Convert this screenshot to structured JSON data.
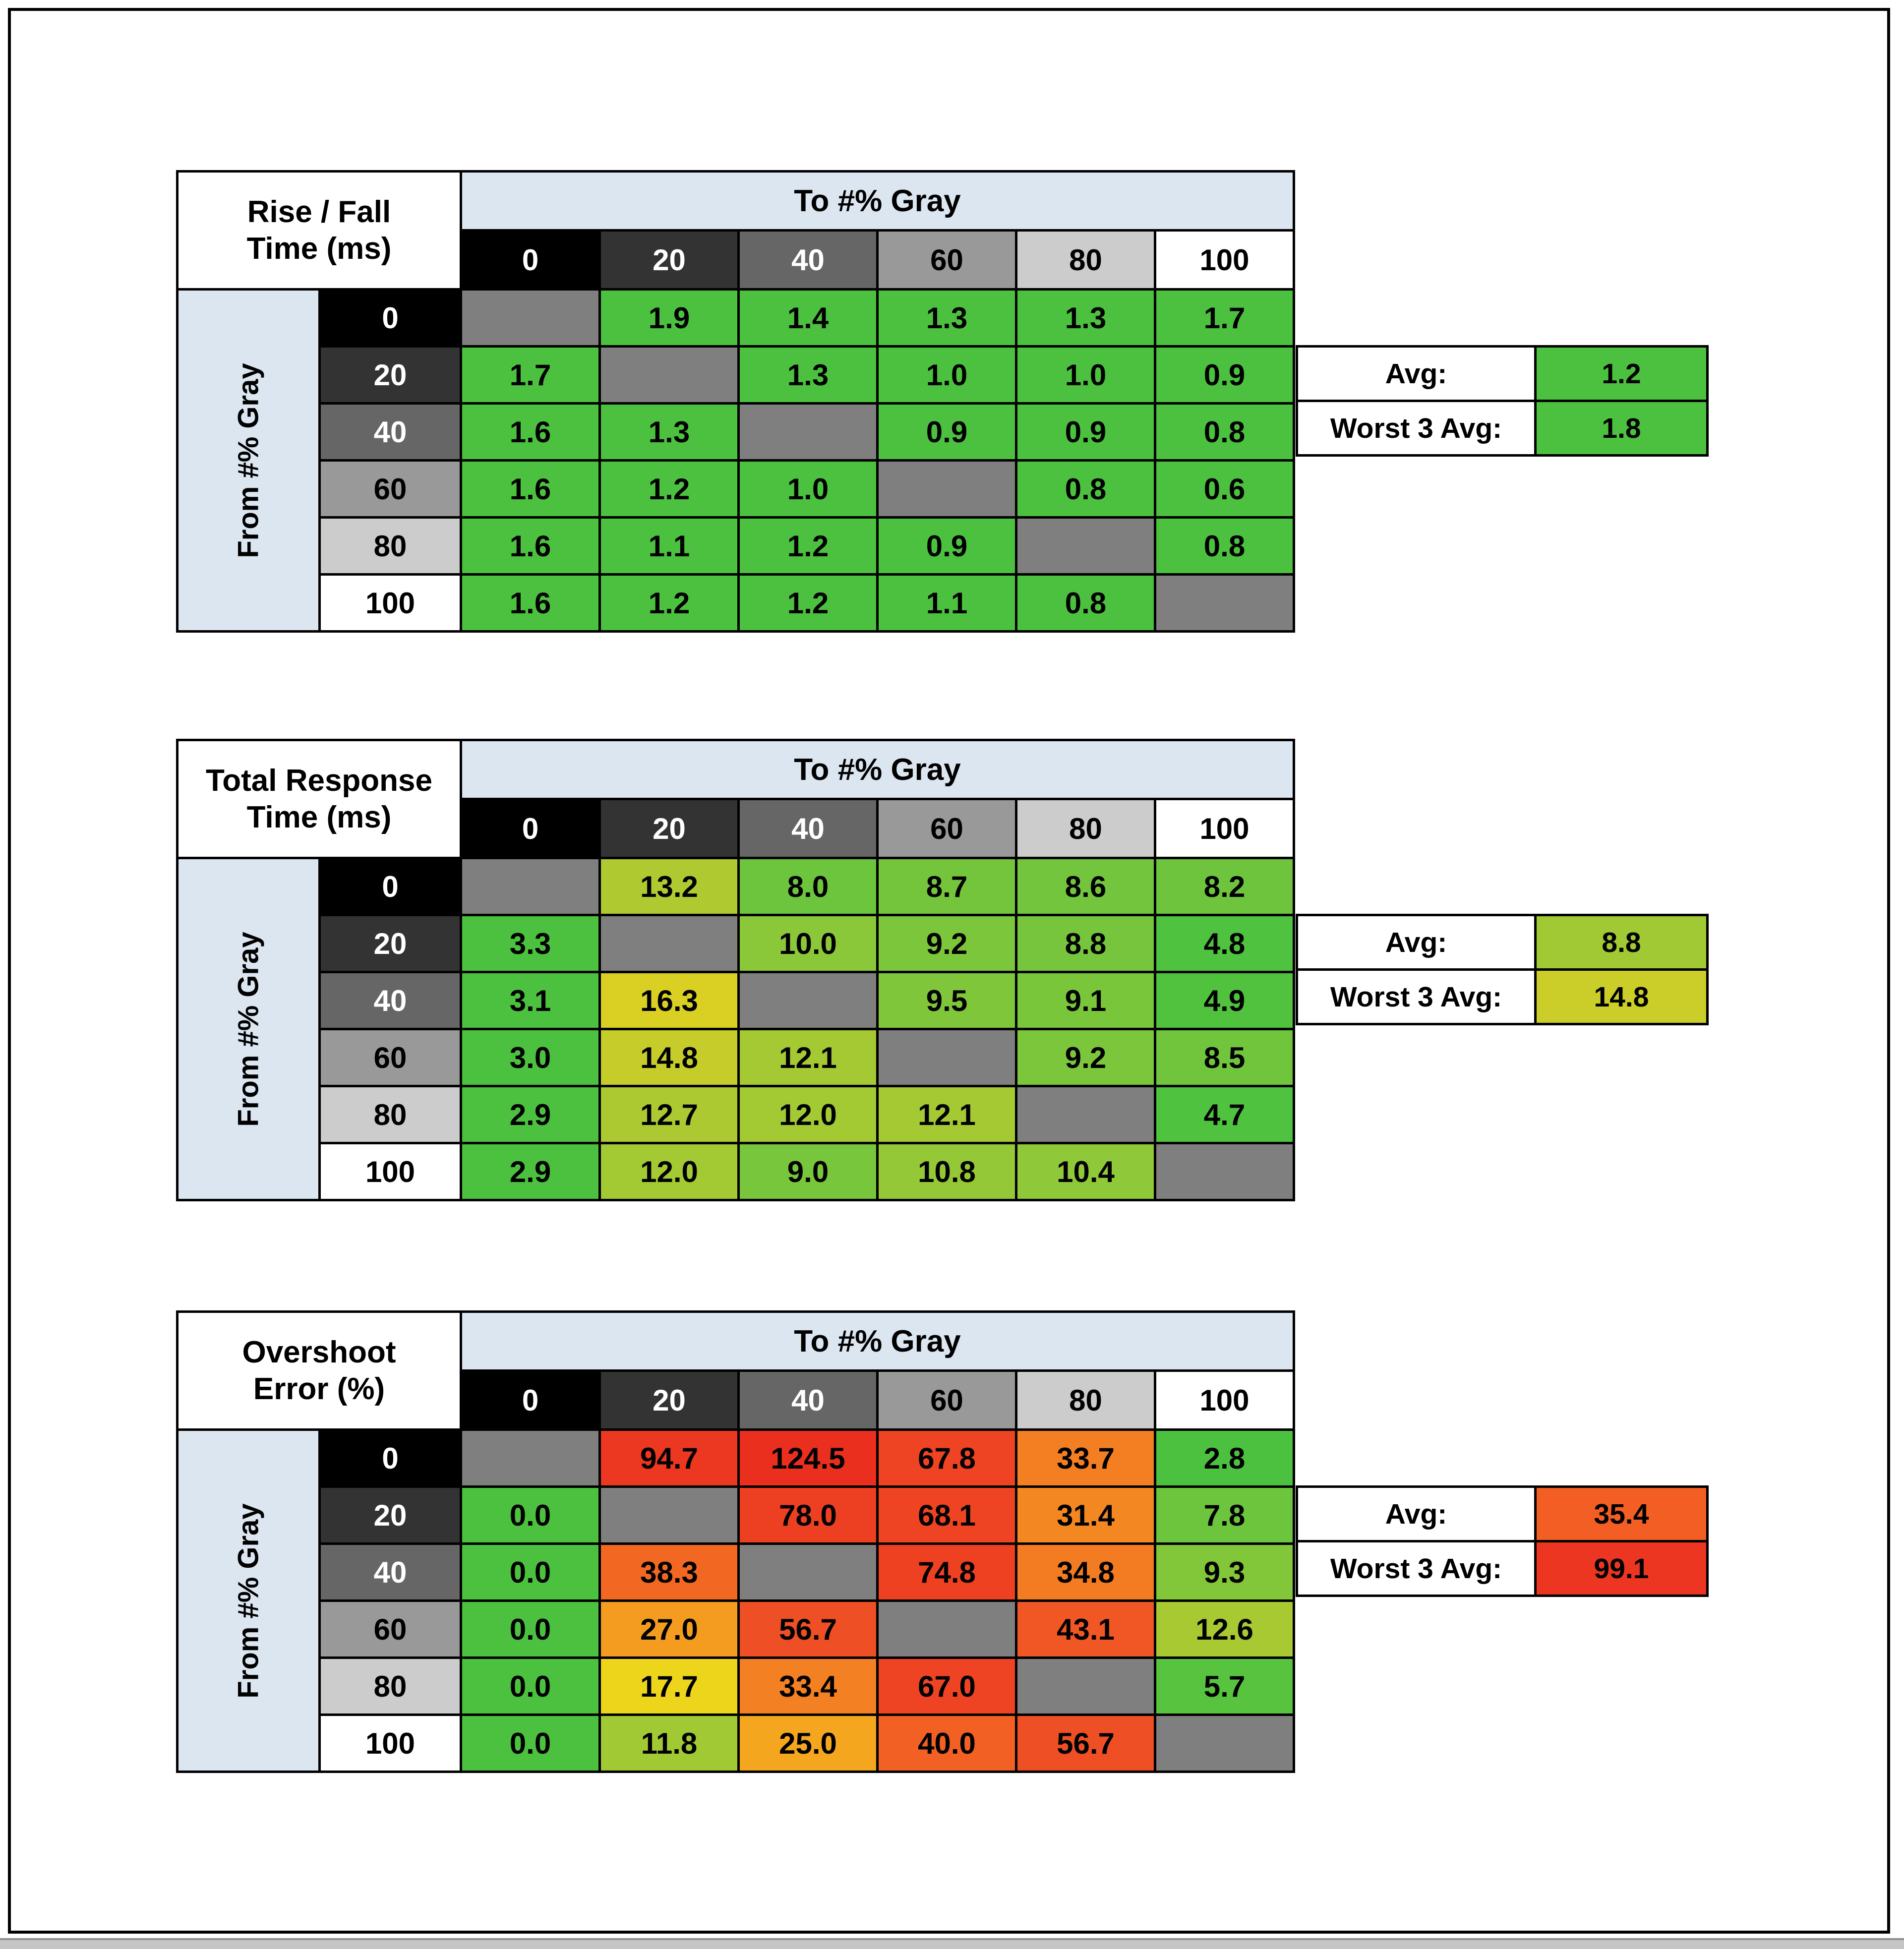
{
  "frame": {
    "border_color": "#000000",
    "page_bg": "#ffffff",
    "bottom_strip_bg": "#c6c6c6"
  },
  "shared": {
    "to_header": "To #% Gray",
    "from_header": "From #% Gray",
    "levels": [
      "0",
      "20",
      "40",
      "60",
      "80",
      "100"
    ],
    "level_bg": [
      "#000000",
      "#333333",
      "#666666",
      "#999999",
      "#cccccc",
      "#ffffff"
    ],
    "level_fg": [
      "#ffffff",
      "#ffffff",
      "#ffffff",
      "#000000",
      "#000000",
      "#000000"
    ],
    "band_bg": "#dce6f1",
    "diag_bg": "#7f7f7f",
    "avg_label": "Avg:",
    "worst_label": "Worst 3 Avg:"
  },
  "chart_data": [
    {
      "type": "heatmap",
      "title": "Rise / Fall Time (ms)",
      "title_lines": [
        "Rise / Fall",
        "Time (ms)"
      ],
      "xlabel": "To #% Gray",
      "ylabel": "From #% Gray",
      "x": [
        0,
        20,
        40,
        60,
        80,
        100
      ],
      "y": [
        0,
        20,
        40,
        60,
        80,
        100
      ],
      "values": [
        [
          null,
          1.9,
          1.4,
          1.3,
          1.3,
          1.7
        ],
        [
          1.7,
          null,
          1.3,
          1.0,
          1.0,
          0.9
        ],
        [
          1.6,
          1.3,
          null,
          0.9,
          0.9,
          0.8
        ],
        [
          1.6,
          1.2,
          1.0,
          null,
          0.8,
          0.6
        ],
        [
          1.6,
          1.1,
          1.2,
          0.9,
          null,
          0.8
        ],
        [
          1.6,
          1.2,
          1.2,
          1.1,
          0.8,
          null
        ]
      ],
      "cell_colors": [
        [
          null,
          "#4cc13f",
          "#4cc13f",
          "#4cc13f",
          "#4cc13f",
          "#4cc13f"
        ],
        [
          "#4cc13f",
          null,
          "#4cc13f",
          "#4cc13f",
          "#4cc13f",
          "#4cc13f"
        ],
        [
          "#4cc13f",
          "#4cc13f",
          null,
          "#4cc13f",
          "#4cc13f",
          "#4cc13f"
        ],
        [
          "#4cc13f",
          "#4cc13f",
          "#4cc13f",
          null,
          "#4cc13f",
          "#4cc13f"
        ],
        [
          "#4cc13f",
          "#4cc13f",
          "#4cc13f",
          "#4cc13f",
          null,
          "#4cc13f"
        ],
        [
          "#4cc13f",
          "#4cc13f",
          "#4cc13f",
          "#4cc13f",
          "#4cc13f",
          null
        ]
      ],
      "stats": {
        "avg": 1.2,
        "avg_color": "#4cc13f",
        "worst3": 1.8,
        "worst3_color": "#4cc13f"
      }
    },
    {
      "type": "heatmap",
      "title": "Total Response Time (ms)",
      "title_lines": [
        "Total Response",
        "Time (ms)"
      ],
      "xlabel": "To #% Gray",
      "ylabel": "From #% Gray",
      "x": [
        0,
        20,
        40,
        60,
        80,
        100
      ],
      "y": [
        0,
        20,
        40,
        60,
        80,
        100
      ],
      "values": [
        [
          null,
          13.2,
          8.0,
          8.7,
          8.6,
          8.2
        ],
        [
          3.3,
          null,
          10.0,
          9.2,
          8.8,
          4.8
        ],
        [
          3.1,
          16.3,
          null,
          9.5,
          9.1,
          4.9
        ],
        [
          3.0,
          14.8,
          12.1,
          null,
          9.2,
          8.5
        ],
        [
          2.9,
          12.7,
          12.0,
          12.1,
          null,
          4.7
        ],
        [
          2.9,
          12.0,
          9.0,
          10.8,
          10.4,
          null
        ]
      ],
      "cell_colors": [
        [
          null,
          "#afc930",
          "#6cc53d",
          "#74c53c",
          "#72c53c",
          "#6ec53d"
        ],
        [
          "#4cc13f",
          null,
          "#8ac739",
          "#7cc63b",
          "#76c53c",
          "#4fc23f"
        ],
        [
          "#4cc13f",
          "#d9d023",
          null,
          "#80c63a",
          "#7ac63b",
          "#50c23e"
        ],
        [
          "#4cc13f",
          "#c6cc2a",
          "#a4c933",
          null,
          "#7cc63b",
          "#70c53c"
        ],
        [
          "#4cc13f",
          "#acc931",
          "#a3c933",
          "#a4c933",
          null,
          "#4fc23f"
        ],
        [
          "#4cc13f",
          "#a3c933",
          "#78c63b",
          "#94c837",
          "#8fc838",
          null
        ]
      ],
      "stats": {
        "avg": 8.8,
        "avg_color": "#a0c934",
        "worst3": 14.8,
        "worst3_color": "#cbcd28"
      }
    },
    {
      "type": "heatmap",
      "title": "Overshoot Error (%)",
      "title_lines": [
        "Overshoot",
        "Error (%)"
      ],
      "xlabel": "To #% Gray",
      "ylabel": "From #% Gray",
      "x": [
        0,
        20,
        40,
        60,
        80,
        100
      ],
      "y": [
        0,
        20,
        40,
        60,
        80,
        100
      ],
      "values": [
        [
          null,
          94.7,
          124.5,
          67.8,
          33.7,
          2.8
        ],
        [
          0.0,
          null,
          78.0,
          68.1,
          31.4,
          7.8
        ],
        [
          0.0,
          38.3,
          null,
          74.8,
          34.8,
          9.3
        ],
        [
          0.0,
          27.0,
          56.7,
          null,
          43.1,
          12.6
        ],
        [
          0.0,
          17.7,
          33.4,
          67.0,
          null,
          5.7
        ],
        [
          0.0,
          11.8,
          25.0,
          40.0,
          56.7,
          null
        ]
      ],
      "cell_colors": [
        [
          null,
          "#ec3721",
          "#eb2f1f",
          "#ee4423",
          "#f37f22",
          "#4cc13f"
        ],
        [
          "#4cc13f",
          null,
          "#ed3f22",
          "#ee4423",
          "#f38722",
          "#6cc53d"
        ],
        [
          "#4cc13f",
          "#f26823",
          null,
          "#ed4122",
          "#f37b22",
          "#82c63a"
        ],
        [
          "#4cc13f",
          "#f49c20",
          "#ef4f24",
          null,
          "#f15724",
          "#a8c932"
        ],
        [
          "#4cc13f",
          "#edd51c",
          "#f38022",
          "#ee4423",
          null,
          "#58c33e"
        ],
        [
          "#4cc13f",
          "#a0c934",
          "#f4a61e",
          "#f26023",
          "#ef4f24",
          null
        ]
      ],
      "stats": {
        "avg": 35.4,
        "avg_color": "#f25e23",
        "worst3": 99.1,
        "worst3_color": "#ec3621"
      }
    }
  ]
}
